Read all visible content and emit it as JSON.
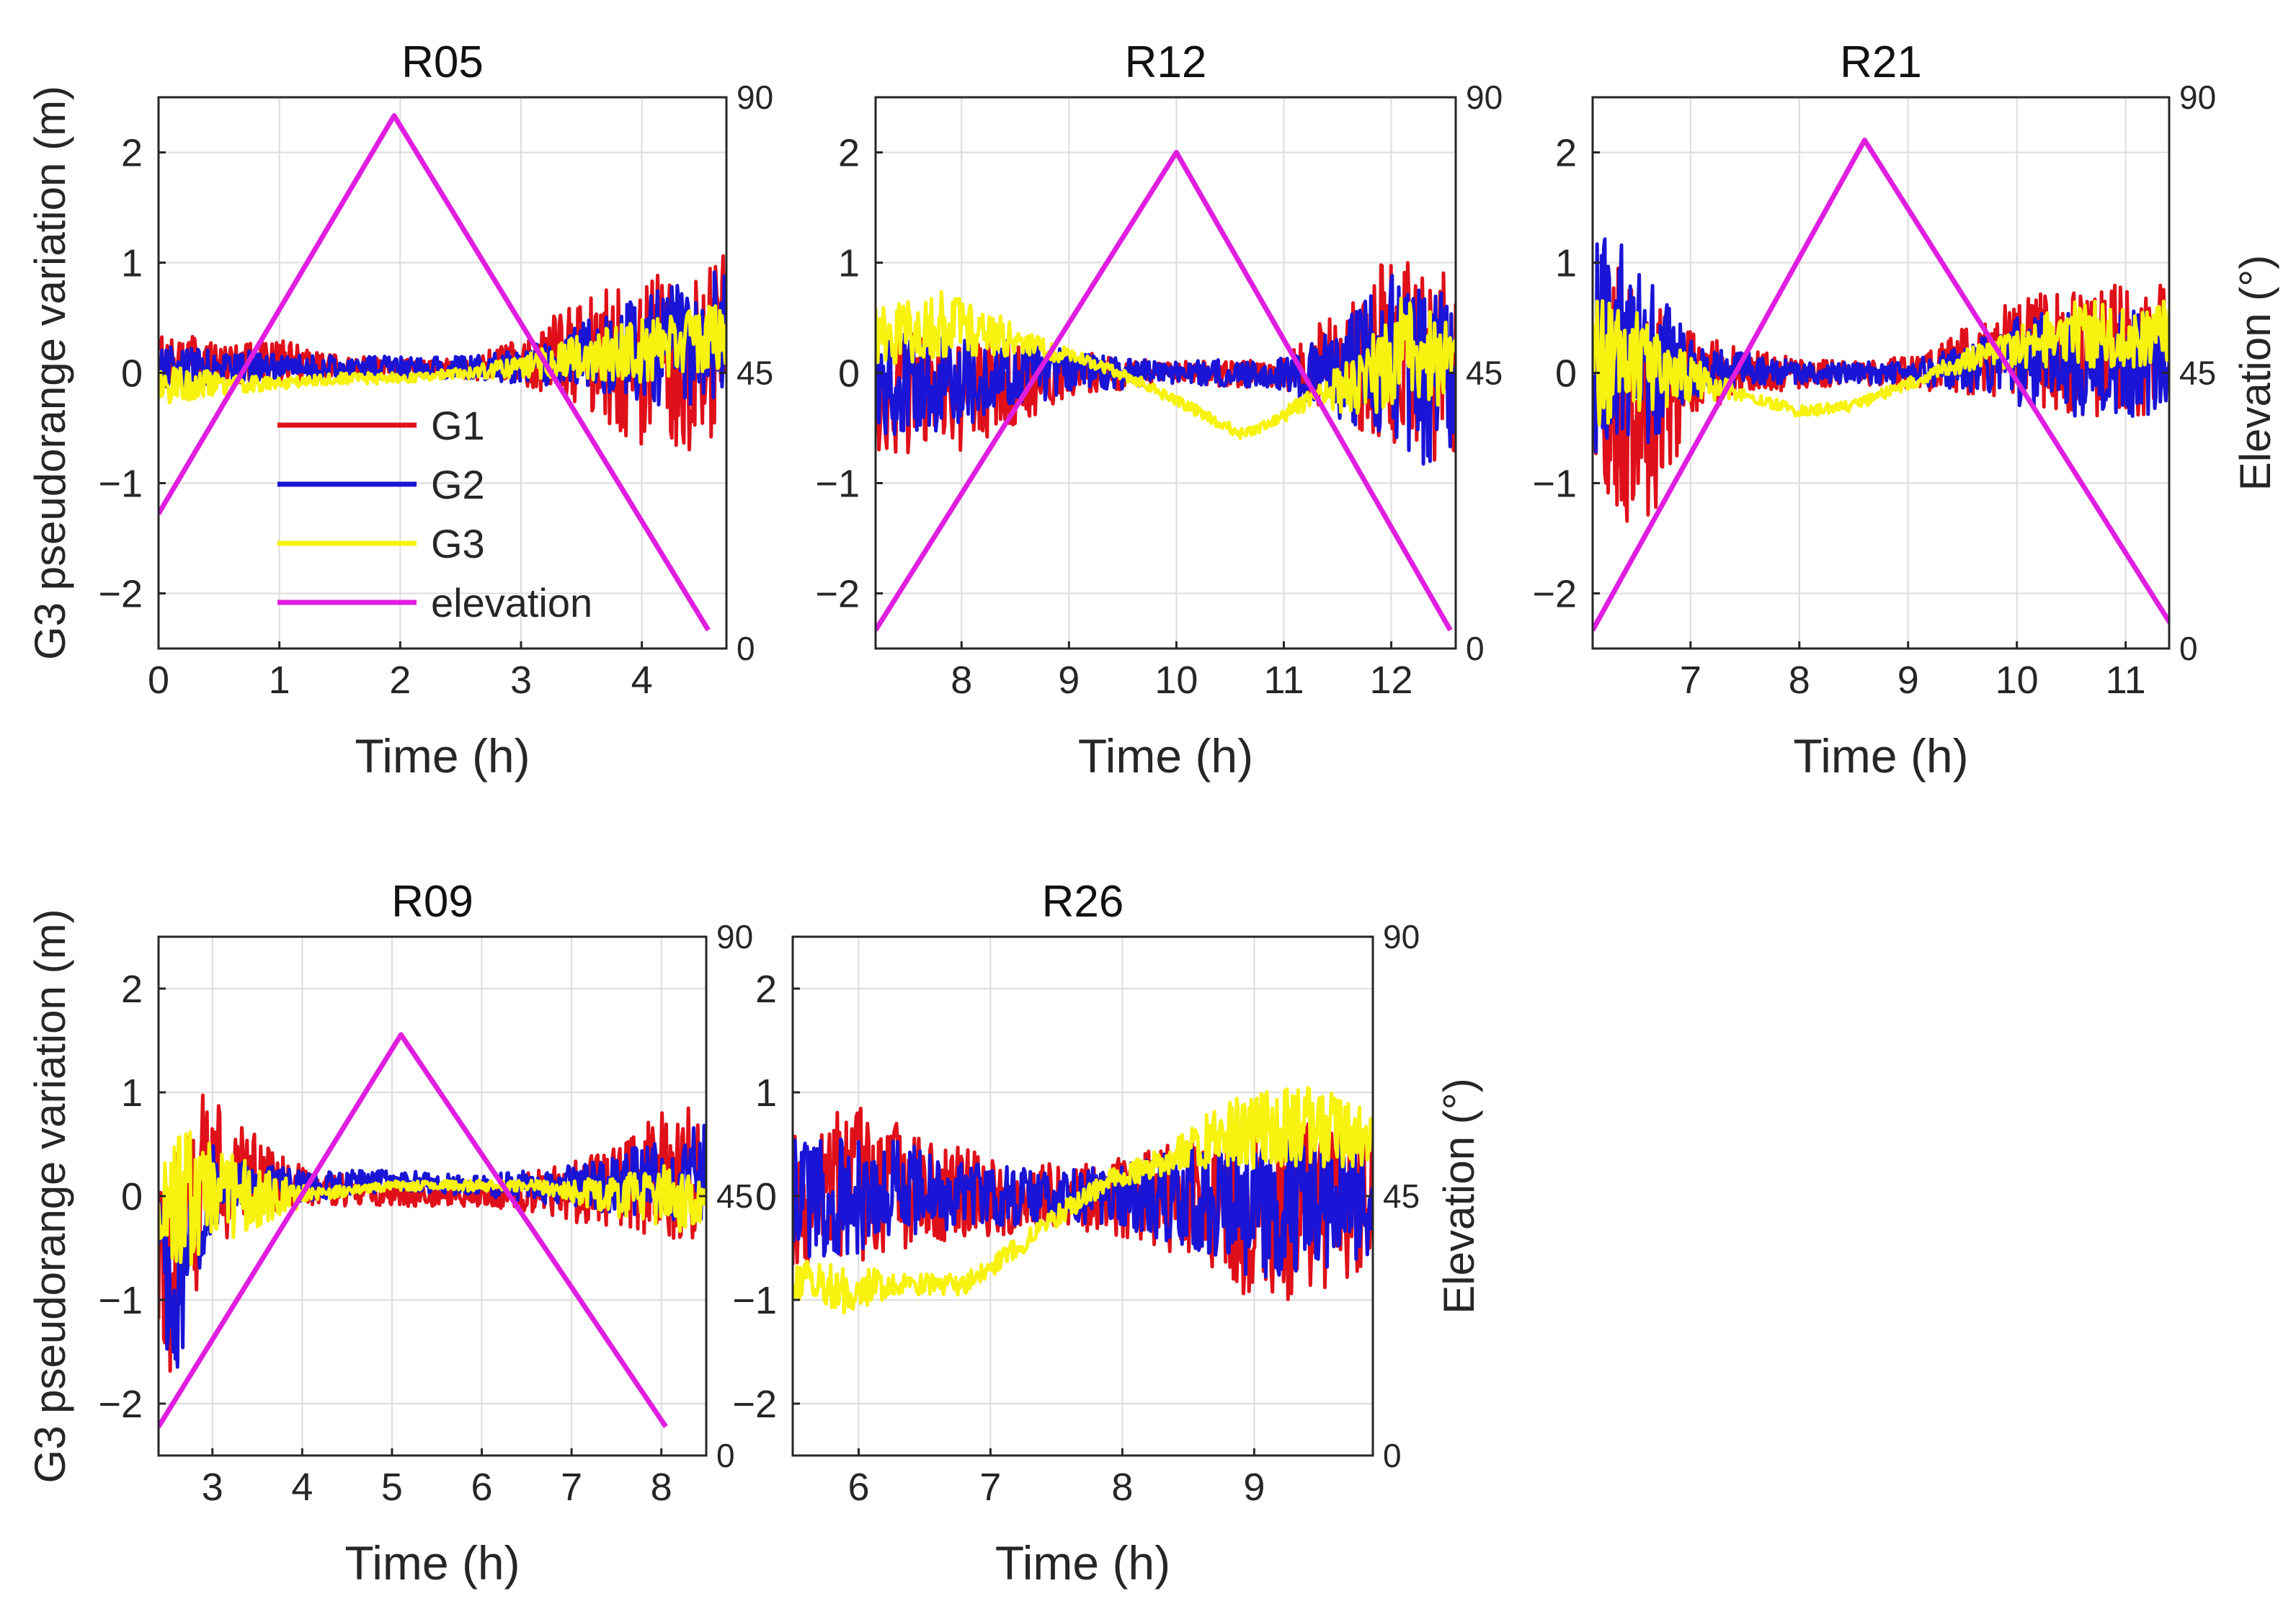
{
  "chart_data": [
    {
      "type": "line",
      "title": "R05",
      "xlabel": "Time (h)",
      "ylabel": "G3 pseudorange variation (m)",
      "ylabel_right": "",
      "xlim": [
        0,
        4.7
      ],
      "ylim": [
        -2.5,
        2.5
      ],
      "ylim_right": [
        0,
        90
      ],
      "xticks": [
        0,
        1,
        2,
        3,
        4
      ],
      "yticks": [
        -2,
        -1,
        0,
        1,
        2
      ],
      "yticks_right": [
        0,
        45,
        90
      ],
      "grid": true,
      "legend": {
        "placement": "lower-left",
        "entries": [
          "G1",
          "G2",
          "G3",
          "elevation"
        ]
      },
      "series": [
        {
          "name": "G1",
          "color": "#e0101a",
          "x": [
            0,
            0.5,
            1,
            1.5,
            2,
            2.5,
            3,
            3.5,
            4,
            4.5,
            4.7
          ],
          "values": [
            0.1,
            0.1,
            0.1,
            0.05,
            0.05,
            0.05,
            0.1,
            0.2,
            0.1,
            0.1,
            0.2
          ],
          "spread": [
            0.3,
            0.2,
            0.2,
            0.1,
            0.1,
            0.1,
            0.2,
            0.5,
            0.8,
            0.8,
            0.9
          ]
        },
        {
          "name": "G2",
          "color": "#1a14d6",
          "x": [
            0,
            0.5,
            1,
            1.5,
            2,
            2.5,
            3,
            3.5,
            4,
            4.5,
            4.7
          ],
          "values": [
            0.05,
            0.05,
            0.05,
            0.05,
            0.05,
            0.05,
            0.05,
            0.15,
            0.2,
            0.3,
            0.4
          ],
          "spread": [
            0.2,
            0.15,
            0.15,
            0.1,
            0.1,
            0.1,
            0.15,
            0.3,
            0.5,
            0.6,
            0.6
          ]
        },
        {
          "name": "G3",
          "color": "#f7f20e",
          "x": [
            0,
            0.5,
            1,
            1.5,
            2,
            2.5,
            3,
            3.5,
            4,
            4.5,
            4.7
          ],
          "values": [
            -0.1,
            -0.1,
            -0.1,
            -0.05,
            -0.05,
            0,
            0.05,
            0.15,
            0.2,
            0.3,
            0.35
          ],
          "spread": [
            0.2,
            0.1,
            0.05,
            0.05,
            0.05,
            0.05,
            0.1,
            0.2,
            0.3,
            0.3,
            0.3
          ]
        }
      ],
      "elevation": {
        "name": "elevation",
        "color": "#e01ee0",
        "x": [
          0,
          1.95,
          4.55
        ],
        "values": [
          22,
          87,
          3
        ]
      }
    },
    {
      "type": "line",
      "title": "R12",
      "xlabel": "Time (h)",
      "ylabel": "",
      "ylabel_right": "",
      "xlim": [
        7.2,
        12.6
      ],
      "ylim": [
        -2.5,
        2.5
      ],
      "ylim_right": [
        0,
        90
      ],
      "xticks": [
        8,
        9,
        10,
        11,
        12
      ],
      "yticks": [
        -2,
        -1,
        0,
        1,
        2
      ],
      "yticks_right": [
        0,
        45,
        90
      ],
      "grid": true,
      "series": [
        {
          "name": "G1",
          "color": "#e0101a",
          "x": [
            7.2,
            8,
            8.5,
            9,
            10,
            11,
            11.5,
            12,
            12.3,
            12.6
          ],
          "values": [
            -0.2,
            -0.2,
            -0.1,
            0,
            0,
            0,
            0.1,
            0.2,
            0.1,
            0
          ],
          "spread": [
            0.6,
            0.5,
            0.4,
            0.2,
            0.1,
            0.15,
            0.5,
            0.9,
            1.0,
            0.8
          ]
        },
        {
          "name": "G2",
          "color": "#1a14d6",
          "x": [
            7.2,
            8,
            8.5,
            9,
            10,
            11,
            11.5,
            12,
            12.3,
            12.6
          ],
          "values": [
            -0.1,
            -0.1,
            0,
            0,
            0,
            0,
            0,
            0.1,
            0,
            0
          ],
          "spread": [
            0.5,
            0.4,
            0.3,
            0.2,
            0.1,
            0.15,
            0.4,
            0.8,
            0.9,
            0.7
          ]
        },
        {
          "name": "G3",
          "color": "#f7f20e",
          "x": [
            7.2,
            7.8,
            8.3,
            8.8,
            9.2,
            9.7,
            10.2,
            10.6,
            10.9,
            11.3,
            11.7,
            12.1,
            12.6
          ],
          "values": [
            0.3,
            0.45,
            0.35,
            0.2,
            0.1,
            -0.1,
            -0.35,
            -0.55,
            -0.45,
            -0.2,
            -0.1,
            0.2,
            0.1
          ],
          "spread": [
            0.3,
            0.3,
            0.2,
            0.1,
            0.05,
            0.05,
            0.05,
            0.05,
            0.05,
            0.1,
            0.3,
            0.5,
            0.4
          ]
        }
      ],
      "elevation": {
        "name": "elevation",
        "color": "#e01ee0",
        "x": [
          7.2,
          10,
          12.55
        ],
        "values": [
          3,
          81,
          3
        ]
      }
    },
    {
      "type": "line",
      "title": "R21",
      "xlabel": "Time (h)",
      "ylabel": "",
      "ylabel_right": "Elevation (°)",
      "xlim": [
        6.1,
        11.4
      ],
      "ylim": [
        -2.5,
        2.5
      ],
      "ylim_right": [
        0,
        90
      ],
      "xticks": [
        7,
        8,
        9,
        10,
        11
      ],
      "yticks": [
        -2,
        -1,
        0,
        1,
        2
      ],
      "yticks_right": [
        0,
        45,
        90
      ],
      "grid": true,
      "series": [
        {
          "name": "G1",
          "color": "#e0101a",
          "x": [
            6.1,
            6.4,
            6.7,
            7,
            7.5,
            8,
            8.5,
            9,
            9.5,
            10,
            10.5,
            11,
            11.4
          ],
          "values": [
            -0.1,
            -0.2,
            -0.3,
            0,
            0,
            0,
            0,
            0,
            0.1,
            0.2,
            0.2,
            0.2,
            0.2
          ],
          "spread": [
            0.9,
            1.2,
            1.0,
            0.4,
            0.2,
            0.15,
            0.1,
            0.15,
            0.3,
            0.5,
            0.6,
            0.6,
            0.6
          ]
        },
        {
          "name": "G2",
          "color": "#1a14d6",
          "x": [
            6.1,
            6.4,
            6.7,
            7,
            7.5,
            8,
            8.5,
            9,
            9.5,
            10,
            10.5,
            11,
            11.4
          ],
          "values": [
            0.2,
            0.3,
            0.1,
            0.05,
            0.05,
            0,
            0,
            0,
            0.05,
            0.1,
            0.1,
            0.1,
            0.1
          ],
          "spread": [
            1.0,
            1.0,
            0.7,
            0.3,
            0.15,
            0.1,
            0.1,
            0.1,
            0.2,
            0.4,
            0.5,
            0.5,
            0.5
          ]
        },
        {
          "name": "G3",
          "color": "#f7f20e",
          "x": [
            6.1,
            6.5,
            7,
            7.5,
            8,
            8.5,
            9,
            9.5,
            10,
            10.5,
            11,
            11.4
          ],
          "values": [
            0.1,
            0.1,
            -0.05,
            -0.2,
            -0.35,
            -0.3,
            -0.1,
            0.1,
            0.25,
            0.35,
            0.35,
            0.35
          ],
          "spread": [
            0.6,
            0.5,
            0.2,
            0.05,
            0.05,
            0.05,
            0.05,
            0.1,
            0.2,
            0.3,
            0.3,
            0.3
          ]
        }
      ],
      "elevation": {
        "name": "elevation",
        "color": "#e01ee0",
        "x": [
          6.1,
          8.6,
          11.45
        ],
        "values": [
          3,
          83,
          3
        ]
      }
    },
    {
      "type": "line",
      "title": "R09",
      "xlabel": "Time (h)",
      "ylabel": "G3 pseudorange variation (m)",
      "ylabel_right": "",
      "xlim": [
        2.4,
        8.5
      ],
      "ylim": [
        -2.5,
        2.5
      ],
      "ylim_right": [
        0,
        90
      ],
      "xticks": [
        3,
        4,
        5,
        6,
        7,
        8
      ],
      "yticks": [
        -2,
        -1,
        0,
        1,
        2
      ],
      "yticks_right": [
        0,
        45,
        90
      ],
      "grid": true,
      "series": [
        {
          "name": "G1",
          "color": "#e0101a",
          "x": [
            2.4,
            2.6,
            2.8,
            3,
            3.5,
            4,
            5,
            6,
            7,
            7.5,
            8,
            8.5
          ],
          "values": [
            -0.6,
            -0.8,
            0,
            0.2,
            0.2,
            0.1,
            0,
            0,
            0.05,
            0.1,
            0.2,
            0.2
          ],
          "spread": [
            0.8,
            1.2,
            1.0,
            0.8,
            0.4,
            0.2,
            0.1,
            0.1,
            0.3,
            0.4,
            0.6,
            0.7
          ]
        },
        {
          "name": "G2",
          "color": "#1a14d6",
          "x": [
            2.4,
            2.6,
            2.8,
            3,
            3.5,
            4,
            5,
            6,
            7,
            7.5,
            8,
            8.5
          ],
          "values": [
            -0.5,
            -1.2,
            -0.3,
            0.1,
            0.1,
            0.1,
            0.15,
            0.1,
            0.1,
            0.1,
            0.2,
            0.2
          ],
          "spread": [
            0.6,
            0.7,
            0.6,
            0.4,
            0.2,
            0.15,
            0.1,
            0.1,
            0.2,
            0.3,
            0.4,
            0.5
          ]
        },
        {
          "name": "G3",
          "color": "#f7f20e",
          "x": [
            2.4,
            2.7,
            3,
            3.5,
            4,
            4.5,
            5,
            5.5,
            6,
            6.5,
            7,
            7.5,
            8,
            8.5
          ],
          "values": [
            -0.1,
            0,
            0,
            0,
            0,
            0.05,
            0.1,
            0.1,
            0.1,
            0.1,
            0.05,
            0,
            0,
            -0.1
          ],
          "spread": [
            0.4,
            0.7,
            0.5,
            0.3,
            0.1,
            0.05,
            0.05,
            0.05,
            0.05,
            0.05,
            0.1,
            0.2,
            0.3,
            0.3
          ]
        }
      ],
      "elevation": {
        "name": "elevation",
        "color": "#e01ee0",
        "x": [
          2.4,
          5.1,
          8.05
        ],
        "values": [
          5,
          73,
          5
        ]
      }
    },
    {
      "type": "line",
      "title": "R26",
      "xlabel": "Time (h)",
      "ylabel": "",
      "ylabel_right": "Elevation (°)",
      "xlim": [
        5.5,
        9.9
      ],
      "ylim": [
        -2.5,
        2.5
      ],
      "ylim_right": [
        0,
        90
      ],
      "xticks": [
        6,
        7,
        8,
        9
      ],
      "yticks": [
        -2,
        -1,
        0,
        1,
        2
      ],
      "yticks_right": [
        0,
        45,
        90
      ],
      "grid": true,
      "series": [
        {
          "name": "G1",
          "color": "#e0101a",
          "x": [
            5.5,
            6,
            6.5,
            7,
            7.5,
            8,
            8.5,
            9,
            9.5,
            9.9
          ],
          "values": [
            0,
            0.1,
            0.05,
            0,
            0,
            0,
            0,
            -0.2,
            -0.1,
            0
          ],
          "spread": [
            0.7,
            0.8,
            0.5,
            0.4,
            0.3,
            0.4,
            0.6,
            0.9,
            0.8,
            0.7
          ]
        },
        {
          "name": "G2",
          "color": "#1a14d6",
          "x": [
            5.5,
            6,
            6.5,
            7,
            7.5,
            8,
            8.5,
            9,
            9.5,
            9.9
          ],
          "values": [
            0,
            0.05,
            0.05,
            0,
            0,
            0,
            0,
            -0.1,
            -0.1,
            0
          ],
          "spread": [
            0.6,
            0.6,
            0.4,
            0.3,
            0.25,
            0.3,
            0.5,
            0.7,
            0.6,
            0.6
          ]
        },
        {
          "name": "G3",
          "color": "#f7f20e",
          "x": [
            5.5,
            5.9,
            6.3,
            6.8,
            7.1,
            7.5,
            7.9,
            8.3,
            8.7,
            9,
            9.4,
            9.9
          ],
          "values": [
            -0.8,
            -0.9,
            -0.85,
            -0.85,
            -0.6,
            -0.2,
            0.15,
            0.35,
            0.55,
            0.65,
            0.65,
            0.6
          ],
          "spread": [
            0.2,
            0.25,
            0.1,
            0.1,
            0.1,
            0.1,
            0.1,
            0.15,
            0.3,
            0.4,
            0.4,
            0.3
          ]
        }
      ],
      "elevation": null
    }
  ]
}
